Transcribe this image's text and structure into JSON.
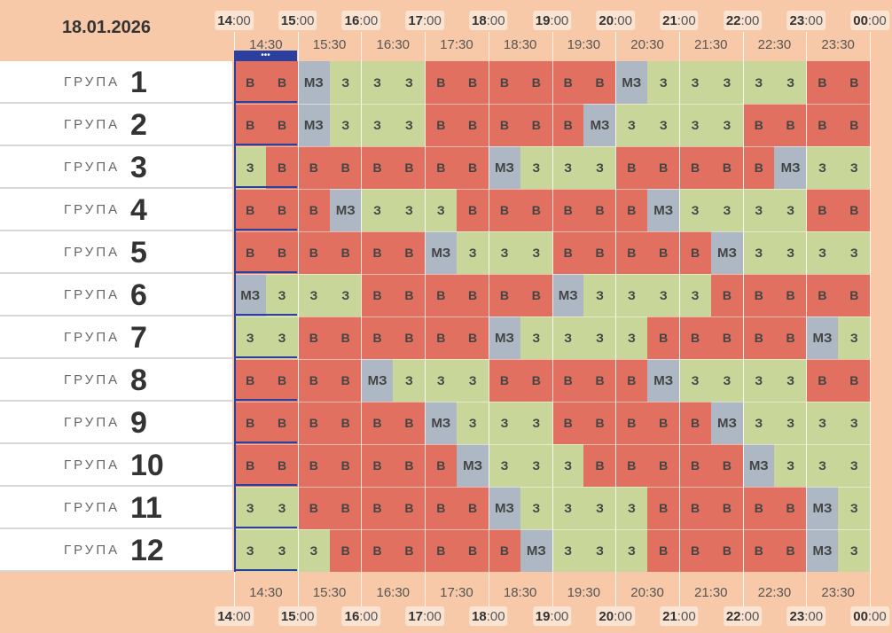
{
  "date": "18.01.2026",
  "now_indicator": "•••",
  "hours": [
    {
      "h": "14",
      "m": ":00"
    },
    {
      "h": "15",
      "m": ":00"
    },
    {
      "h": "16",
      "m": ":00"
    },
    {
      "h": "17",
      "m": ":00"
    },
    {
      "h": "18",
      "m": ":00"
    },
    {
      "h": "19",
      "m": ":00"
    },
    {
      "h": "20",
      "m": ":00"
    },
    {
      "h": "21",
      "m": ":00"
    },
    {
      "h": "22",
      "m": ":00"
    },
    {
      "h": "23",
      "m": ":00"
    },
    {
      "h": "00",
      "m": ":00"
    }
  ],
  "half_hours": [
    "14:30",
    "15:30",
    "16:30",
    "17:30",
    "18:30",
    "19:30",
    "20:30",
    "21:30",
    "22:30",
    "23:30"
  ],
  "group_word": "ГРУПА",
  "legend_codes": {
    "B": "В",
    "Z": "З",
    "MZ": "МЗ"
  },
  "colors": {
    "B": "#e17060",
    "Z": "#c8d69a",
    "MZ": "#aeb8c4",
    "background": "#f8c9a8",
    "now": "#2b3f9e"
  },
  "groups": [
    {
      "number": "1",
      "slots": [
        "B",
        "B",
        "MZ",
        "Z",
        "Z",
        "Z",
        "B",
        "B",
        "B",
        "B",
        "B",
        "B",
        "MZ",
        "Z",
        "Z",
        "Z",
        "Z",
        "Z",
        "B",
        "B"
      ]
    },
    {
      "number": "2",
      "slots": [
        "B",
        "B",
        "MZ",
        "Z",
        "Z",
        "Z",
        "B",
        "B",
        "B",
        "B",
        "B",
        "MZ",
        "Z",
        "Z",
        "Z",
        "Z",
        "B",
        "B",
        "B",
        "B"
      ]
    },
    {
      "number": "3",
      "slots": [
        "Z",
        "B",
        "B",
        "B",
        "B",
        "B",
        "B",
        "B",
        "MZ",
        "Z",
        "Z",
        "Z",
        "B",
        "B",
        "B",
        "B",
        "B",
        "MZ",
        "Z",
        "Z"
      ]
    },
    {
      "number": "4",
      "slots": [
        "B",
        "B",
        "B",
        "MZ",
        "Z",
        "Z",
        "Z",
        "B",
        "B",
        "B",
        "B",
        "B",
        "B",
        "MZ",
        "Z",
        "Z",
        "Z",
        "Z",
        "B",
        "B"
      ]
    },
    {
      "number": "5",
      "slots": [
        "B",
        "B",
        "B",
        "B",
        "B",
        "B",
        "MZ",
        "Z",
        "Z",
        "Z",
        "B",
        "B",
        "B",
        "B",
        "B",
        "MZ",
        "Z",
        "Z",
        "Z",
        "Z"
      ]
    },
    {
      "number": "6",
      "slots": [
        "MZ",
        "Z",
        "Z",
        "Z",
        "B",
        "B",
        "B",
        "B",
        "B",
        "B",
        "MZ",
        "Z",
        "Z",
        "Z",
        "Z",
        "B",
        "B",
        "B",
        "B",
        "B"
      ]
    },
    {
      "number": "7",
      "slots": [
        "Z",
        "Z",
        "B",
        "B",
        "B",
        "B",
        "B",
        "B",
        "MZ",
        "Z",
        "Z",
        "Z",
        "Z",
        "B",
        "B",
        "B",
        "B",
        "B",
        "MZ",
        "Z"
      ]
    },
    {
      "number": "8",
      "slots": [
        "B",
        "B",
        "B",
        "B",
        "MZ",
        "Z",
        "Z",
        "Z",
        "B",
        "B",
        "B",
        "B",
        "B",
        "MZ",
        "Z",
        "Z",
        "Z",
        "Z",
        "B",
        "B"
      ]
    },
    {
      "number": "9",
      "slots": [
        "B",
        "B",
        "B",
        "B",
        "B",
        "B",
        "MZ",
        "Z",
        "Z",
        "Z",
        "B",
        "B",
        "B",
        "B",
        "B",
        "MZ",
        "Z",
        "Z",
        "Z",
        "Z"
      ]
    },
    {
      "number": "10",
      "slots": [
        "B",
        "B",
        "B",
        "B",
        "B",
        "B",
        "B",
        "MZ",
        "Z",
        "Z",
        "Z",
        "B",
        "B",
        "B",
        "B",
        "B",
        "MZ",
        "Z",
        "Z",
        "Z"
      ]
    },
    {
      "number": "11",
      "slots": [
        "Z",
        "Z",
        "B",
        "B",
        "B",
        "B",
        "B",
        "B",
        "MZ",
        "Z",
        "Z",
        "Z",
        "Z",
        "B",
        "B",
        "B",
        "B",
        "B",
        "MZ",
        "Z"
      ]
    },
    {
      "number": "12",
      "slots": [
        "Z",
        "Z",
        "Z",
        "B",
        "B",
        "B",
        "B",
        "B",
        "B",
        "MZ",
        "Z",
        "Z",
        "Z",
        "B",
        "B",
        "B",
        "B",
        "B",
        "MZ",
        "Z"
      ]
    }
  ]
}
